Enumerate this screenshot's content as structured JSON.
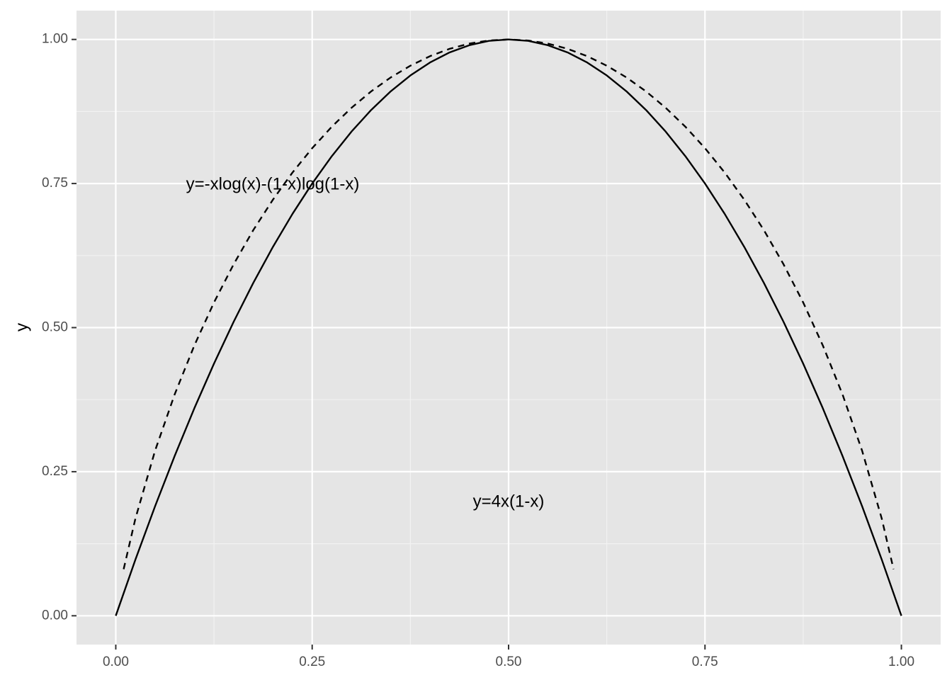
{
  "chart_data": {
    "type": "line",
    "y_label": "y",
    "annotations": [
      "y=-xlog(x)-(1-x)log(1-x)",
      "y=4x(1-x)"
    ],
    "series": [
      {
        "color": "#000000",
        "dash": "solid",
        "x": [
          0,
          0.025,
          0.05,
          0.075,
          0.1,
          0.125,
          0.15,
          0.175,
          0.2,
          0.225,
          0.25,
          0.275,
          0.3,
          0.325,
          0.35,
          0.375,
          0.4,
          0.425,
          0.45,
          0.475,
          0.5,
          0.525,
          0.55,
          0.575,
          0.6,
          0.625,
          0.65,
          0.675,
          0.7,
          0.725,
          0.75,
          0.775,
          0.8,
          0.825,
          0.85,
          0.875,
          0.9,
          0.925,
          0.95,
          0.975,
          1
        ],
        "values": [
          0,
          0.0975,
          0.19,
          0.2775,
          0.36,
          0.4375,
          0.51,
          0.5775,
          0.64,
          0.6975,
          0.75,
          0.7975,
          0.84,
          0.8775,
          0.91,
          0.9375,
          0.96,
          0.9775,
          0.99,
          0.9975,
          1,
          0.9975,
          0.99,
          0.9775,
          0.96,
          0.9375,
          0.91,
          0.8775,
          0.84,
          0.7975,
          0.75,
          0.6975,
          0.64,
          0.5775,
          0.51,
          0.4375,
          0.36,
          0.2775,
          0.19,
          0.0975,
          0
        ]
      },
      {
        "color": "#000000",
        "dash": "dashed",
        "x": [
          0.01,
          0.025,
          0.05,
          0.075,
          0.1,
          0.125,
          0.15,
          0.175,
          0.2,
          0.225,
          0.25,
          0.275,
          0.3,
          0.325,
          0.35,
          0.375,
          0.4,
          0.425,
          0.45,
          0.475,
          0.5,
          0.525,
          0.55,
          0.575,
          0.6,
          0.625,
          0.65,
          0.675,
          0.7,
          0.725,
          0.75,
          0.775,
          0.8,
          0.825,
          0.85,
          0.875,
          0.9,
          0.925,
          0.95,
          0.975,
          0.99
        ],
        "values": [
          0.0808,
          0.1687,
          0.2864,
          0.3843,
          0.469,
          0.5436,
          0.6098,
          0.6691,
          0.7219,
          0.7692,
          0.8113,
          0.8486,
          0.8813,
          0.9098,
          0.9341,
          0.9544,
          0.971,
          0.9838,
          0.9928,
          0.9982,
          1,
          0.9982,
          0.9928,
          0.9838,
          0.971,
          0.9544,
          0.9341,
          0.9098,
          0.8813,
          0.8486,
          0.8113,
          0.7692,
          0.7219,
          0.6691,
          0.6098,
          0.5436,
          0.469,
          0.3843,
          0.2864,
          0.1687,
          0.0808
        ]
      }
    ],
    "xlim": [
      -0.05,
      1.05
    ],
    "ylim": [
      -0.05,
      1.05
    ],
    "xticks": [
      {
        "value": 0,
        "label": "0.00"
      },
      {
        "value": 0.25,
        "label": "0.25"
      },
      {
        "value": 0.5,
        "label": "0.50"
      },
      {
        "value": 0.75,
        "label": "0.75"
      },
      {
        "value": 1,
        "label": "1.00"
      }
    ],
    "yticks": [
      {
        "value": 0,
        "label": "0.00"
      },
      {
        "value": 0.25,
        "label": "0.25"
      },
      {
        "value": 0.5,
        "label": "0.50"
      },
      {
        "value": 0.75,
        "label": "0.75"
      },
      {
        "value": 1,
        "label": "1.00"
      }
    ],
    "grid": true,
    "background": "#e5e5e5"
  }
}
